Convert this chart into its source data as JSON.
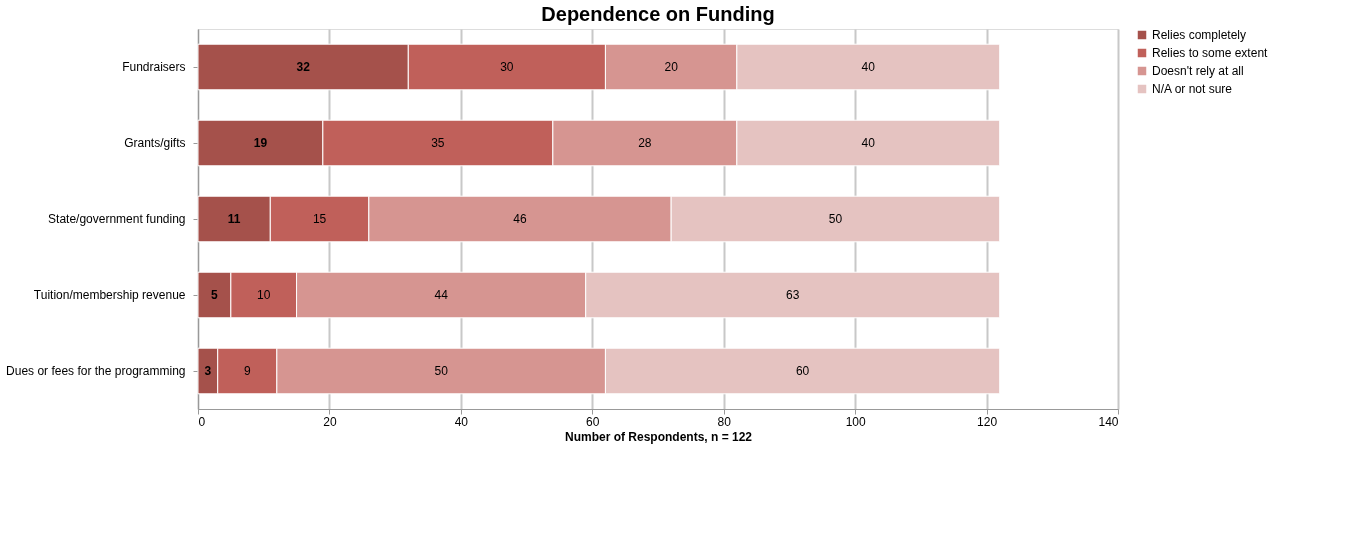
{
  "chart_data": {
    "type": "bar",
    "orientation": "horizontal",
    "stacked": true,
    "title": "Dependence on Funding",
    "xlabel": "Number of Respondents, n = 122",
    "categories": [
      "Fundraisers",
      "Grants/gifts",
      "State/government funding",
      "Tuition/membership revenue",
      "Dues or fees for the programming"
    ],
    "series": [
      {
        "name": "Relies completely",
        "color": "#a5514b",
        "values": [
          32,
          19,
          11,
          5,
          3
        ]
      },
      {
        "name": "Relies to some extent",
        "color": "#c0605a",
        "values": [
          30,
          35,
          15,
          10,
          9
        ]
      },
      {
        "name": "Doesn't rely at all",
        "color": "#d69591",
        "values": [
          20,
          28,
          46,
          44,
          50
        ]
      },
      {
        "name": "N/A or not sure",
        "color": "#e5c3c1",
        "values": [
          40,
          40,
          50,
          63,
          60
        ]
      }
    ],
    "xlim": [
      0,
      140
    ],
    "xticks": [
      0,
      20,
      40,
      60,
      80,
      100,
      120,
      140
    ],
    "grid": "x",
    "legend": "right",
    "data_labels": true
  }
}
